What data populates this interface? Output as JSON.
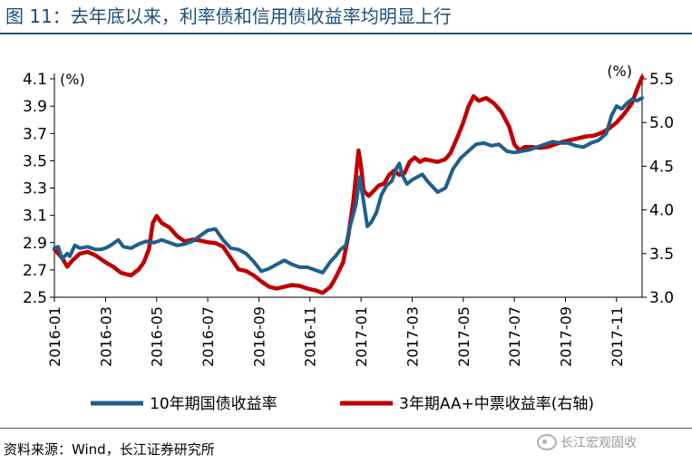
{
  "figure": {
    "title": "图 11：去年底以来，利率债和信用债收益率均明显上行",
    "source": "资料来源：Wind，长江证券研究所",
    "watermark": "长江宏观固收"
  },
  "colors": {
    "title": "#1f4e79",
    "series_left": "#1f5f8b",
    "series_right": "#c00000",
    "axis": "#000000"
  },
  "chart_data": {
    "type": "line",
    "title": "",
    "x_start": "2016-01",
    "x_end": "2017-12",
    "x_ticks": [
      "2016-01",
      "2016-03",
      "2016-05",
      "2016-07",
      "2016-09",
      "2016-11",
      "2017-01",
      "2017-03",
      "2017-05",
      "2017-07",
      "2017-09",
      "2017-11"
    ],
    "y_left": {
      "unit": "(%)",
      "lim": [
        2.5,
        4.1
      ],
      "ticks": [
        "2.5",
        "2.7",
        "2.9",
        "3.1",
        "3.3",
        "3.5",
        "3.7",
        "3.9",
        "4.1"
      ]
    },
    "y_right": {
      "unit": "(%)",
      "lim": [
        3.0,
        5.5
      ],
      "ticks": [
        "3.0",
        "3.5",
        "4.0",
        "4.5",
        "5.0",
        "5.5"
      ]
    },
    "legend": {
      "position": "bottom"
    },
    "series": [
      {
        "name": "10年期国债收益率",
        "axis": "left",
        "points": [
          [
            0.0,
            2.86
          ],
          [
            0.15,
            2.87
          ],
          [
            0.3,
            2.78
          ],
          [
            0.5,
            2.82
          ],
          [
            0.6,
            2.8
          ],
          [
            0.8,
            2.88
          ],
          [
            1.0,
            2.86
          ],
          [
            1.3,
            2.87
          ],
          [
            1.6,
            2.85
          ],
          [
            1.8,
            2.85
          ],
          [
            2.0,
            2.86
          ],
          [
            2.2,
            2.88
          ],
          [
            2.5,
            2.92
          ],
          [
            2.7,
            2.87
          ],
          [
            3.0,
            2.86
          ],
          [
            3.3,
            2.89
          ],
          [
            3.6,
            2.91
          ],
          [
            3.9,
            2.9
          ],
          [
            4.2,
            2.92
          ],
          [
            4.5,
            2.9
          ],
          [
            4.8,
            2.88
          ],
          [
            5.1,
            2.89
          ],
          [
            5.4,
            2.91
          ],
          [
            5.7,
            2.95
          ],
          [
            6.0,
            2.99
          ],
          [
            6.3,
            3.0
          ],
          [
            6.6,
            2.92
          ],
          [
            6.9,
            2.86
          ],
          [
            7.2,
            2.85
          ],
          [
            7.5,
            2.82
          ],
          [
            7.8,
            2.76
          ],
          [
            8.1,
            2.69
          ],
          [
            8.4,
            2.71
          ],
          [
            8.7,
            2.74
          ],
          [
            9.0,
            2.77
          ],
          [
            9.3,
            2.74
          ],
          [
            9.6,
            2.72
          ],
          [
            9.9,
            2.72
          ],
          [
            10.2,
            2.7
          ],
          [
            10.5,
            2.68
          ],
          [
            10.8,
            2.76
          ],
          [
            11.0,
            2.8
          ],
          [
            11.2,
            2.85
          ],
          [
            11.4,
            2.88
          ],
          [
            11.6,
            3.04
          ],
          [
            11.8,
            3.18
          ],
          [
            11.95,
            3.38
          ],
          [
            12.1,
            3.2
          ],
          [
            12.25,
            3.02
          ],
          [
            12.4,
            3.05
          ],
          [
            12.6,
            3.12
          ],
          [
            12.8,
            3.25
          ],
          [
            13.0,
            3.32
          ],
          [
            13.2,
            3.35
          ],
          [
            13.4,
            3.45
          ],
          [
            13.5,
            3.48
          ],
          [
            13.6,
            3.4
          ],
          [
            13.8,
            3.33
          ],
          [
            14.0,
            3.36
          ],
          [
            14.2,
            3.38
          ],
          [
            14.4,
            3.4
          ],
          [
            14.6,
            3.35
          ],
          [
            14.8,
            3.31
          ],
          [
            15.0,
            3.27
          ],
          [
            15.3,
            3.3
          ],
          [
            15.6,
            3.44
          ],
          [
            15.9,
            3.52
          ],
          [
            16.2,
            3.57
          ],
          [
            16.5,
            3.62
          ],
          [
            16.8,
            3.63
          ],
          [
            17.1,
            3.61
          ],
          [
            17.4,
            3.62
          ],
          [
            17.7,
            3.57
          ],
          [
            18.0,
            3.56
          ],
          [
            18.3,
            3.57
          ],
          [
            18.6,
            3.58
          ],
          [
            18.9,
            3.6
          ],
          [
            19.2,
            3.62
          ],
          [
            19.5,
            3.64
          ],
          [
            19.8,
            3.63
          ],
          [
            20.1,
            3.63
          ],
          [
            20.4,
            3.61
          ],
          [
            20.7,
            3.6
          ],
          [
            21.0,
            3.63
          ],
          [
            21.3,
            3.65
          ],
          [
            21.6,
            3.7
          ],
          [
            21.8,
            3.83
          ],
          [
            22.0,
            3.9
          ],
          [
            22.2,
            3.88
          ],
          [
            22.4,
            3.92
          ],
          [
            22.6,
            3.95
          ],
          [
            22.8,
            3.94
          ],
          [
            23.0,
            3.96
          ]
        ]
      },
      {
        "name": "3年期AA+中票收益率(右轴)",
        "axis": "right",
        "points": [
          [
            0.0,
            3.55
          ],
          [
            0.3,
            3.45
          ],
          [
            0.5,
            3.35
          ],
          [
            0.7,
            3.42
          ],
          [
            1.0,
            3.5
          ],
          [
            1.3,
            3.52
          ],
          [
            1.6,
            3.48
          ],
          [
            2.0,
            3.4
          ],
          [
            2.3,
            3.35
          ],
          [
            2.6,
            3.28
          ],
          [
            3.0,
            3.25
          ],
          [
            3.3,
            3.32
          ],
          [
            3.5,
            3.4
          ],
          [
            3.7,
            3.55
          ],
          [
            3.85,
            3.85
          ],
          [
            4.0,
            3.93
          ],
          [
            4.2,
            3.85
          ],
          [
            4.5,
            3.8
          ],
          [
            4.8,
            3.7
          ],
          [
            5.1,
            3.64
          ],
          [
            5.4,
            3.66
          ],
          [
            5.7,
            3.65
          ],
          [
            6.0,
            3.63
          ],
          [
            6.3,
            3.62
          ],
          [
            6.6,
            3.58
          ],
          [
            6.9,
            3.45
          ],
          [
            7.2,
            3.32
          ],
          [
            7.5,
            3.3
          ],
          [
            7.8,
            3.25
          ],
          [
            8.1,
            3.18
          ],
          [
            8.4,
            3.12
          ],
          [
            8.7,
            3.1
          ],
          [
            9.0,
            3.12
          ],
          [
            9.3,
            3.14
          ],
          [
            9.6,
            3.13
          ],
          [
            9.9,
            3.1
          ],
          [
            10.2,
            3.08
          ],
          [
            10.5,
            3.05
          ],
          [
            10.8,
            3.12
          ],
          [
            11.0,
            3.22
          ],
          [
            11.3,
            3.4
          ],
          [
            11.5,
            3.7
          ],
          [
            11.7,
            4.1
          ],
          [
            11.9,
            4.68
          ],
          [
            12.0,
            4.5
          ],
          [
            12.1,
            4.22
          ],
          [
            12.3,
            4.16
          ],
          [
            12.5,
            4.22
          ],
          [
            12.7,
            4.28
          ],
          [
            12.9,
            4.3
          ],
          [
            13.1,
            4.4
          ],
          [
            13.3,
            4.45
          ],
          [
            13.5,
            4.4
          ],
          [
            13.7,
            4.42
          ],
          [
            13.9,
            4.55
          ],
          [
            14.1,
            4.6
          ],
          [
            14.3,
            4.55
          ],
          [
            14.5,
            4.58
          ],
          [
            14.8,
            4.56
          ],
          [
            15.0,
            4.55
          ],
          [
            15.3,
            4.58
          ],
          [
            15.5,
            4.65
          ],
          [
            15.8,
            4.85
          ],
          [
            16.0,
            5.0
          ],
          [
            16.2,
            5.18
          ],
          [
            16.4,
            5.3
          ],
          [
            16.6,
            5.25
          ],
          [
            16.9,
            5.28
          ],
          [
            17.2,
            5.22
          ],
          [
            17.5,
            5.12
          ],
          [
            17.8,
            4.95
          ],
          [
            18.0,
            4.75
          ],
          [
            18.2,
            4.68
          ],
          [
            18.4,
            4.72
          ],
          [
            18.7,
            4.72
          ],
          [
            19.0,
            4.71
          ],
          [
            19.3,
            4.72
          ],
          [
            19.6,
            4.75
          ],
          [
            19.9,
            4.78
          ],
          [
            20.2,
            4.8
          ],
          [
            20.5,
            4.82
          ],
          [
            20.8,
            4.84
          ],
          [
            21.1,
            4.85
          ],
          [
            21.4,
            4.88
          ],
          [
            21.7,
            4.93
          ],
          [
            22.0,
            5.0
          ],
          [
            22.3,
            5.1
          ],
          [
            22.6,
            5.22
          ],
          [
            22.8,
            5.38
          ],
          [
            23.0,
            5.52
          ]
        ]
      }
    ]
  }
}
